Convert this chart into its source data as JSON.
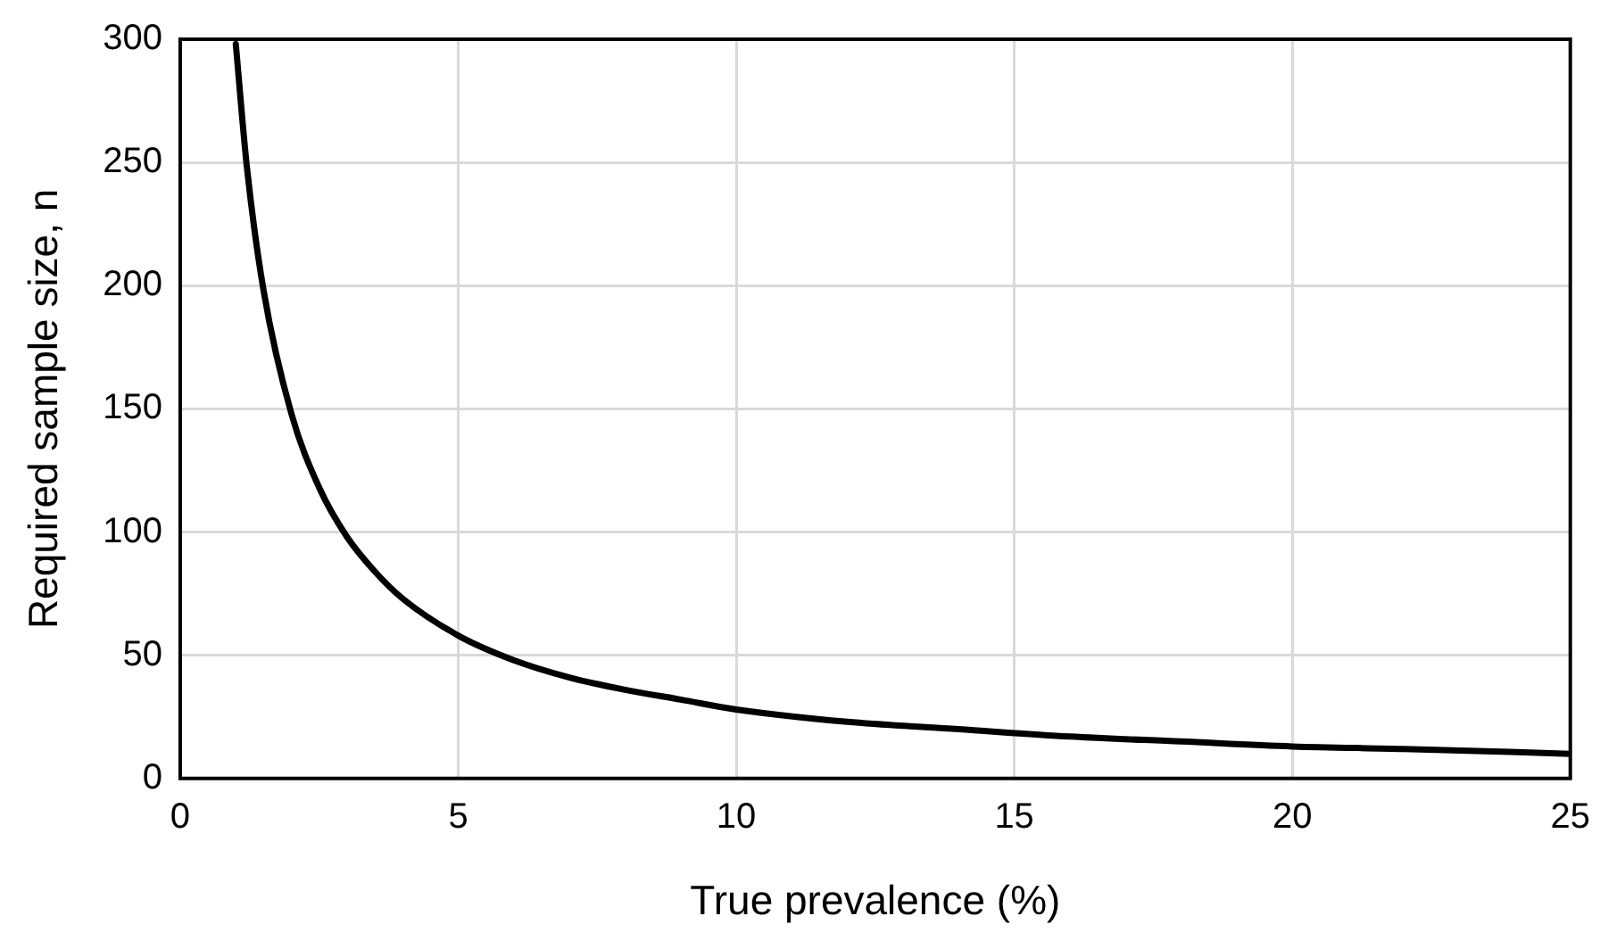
{
  "chart_data": {
    "type": "line",
    "xlabel": "True prevalence (%)",
    "ylabel": "Required sample size, n",
    "x": [
      1,
      1.2,
      1.5,
      2,
      2.5,
      3,
      3.5,
      4,
      5,
      6,
      7,
      8,
      9,
      10,
      12,
      14,
      16,
      18,
      20,
      22,
      25
    ],
    "series": [
      {
        "color": "#000000",
        "values": [
          298,
          248,
          198,
          148,
          118,
          98,
          84,
          73,
          58,
          48,
          41,
          36,
          32,
          28,
          23,
          20,
          17,
          15,
          13,
          12,
          10
        ]
      }
    ],
    "xlim": [
      0,
      25
    ],
    "xticks": [
      0,
      5,
      10,
      15,
      20,
      25
    ],
    "ylim": [
      0,
      300
    ],
    "yticks": [
      0,
      50,
      100,
      150,
      200,
      250,
      300
    ],
    "grid": true,
    "legend": false,
    "marker": "none",
    "line_style": "solid"
  }
}
